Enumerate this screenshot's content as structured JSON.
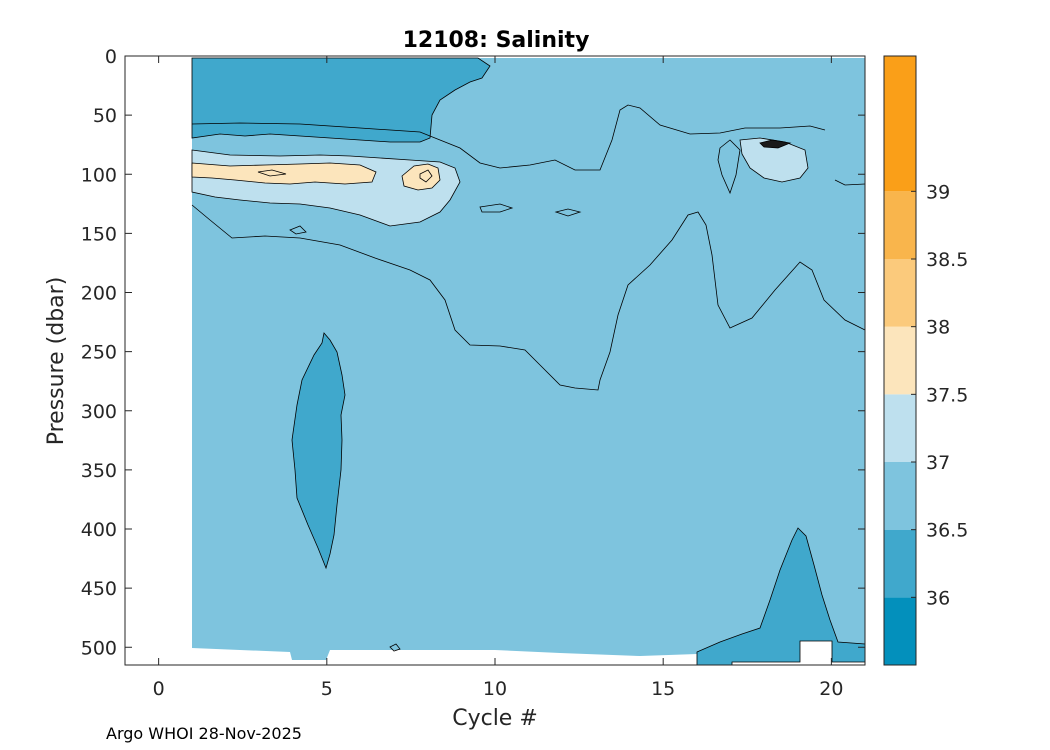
{
  "chart_data": {
    "type": "contour",
    "title": "12108:  Salinity",
    "xlabel": "Cycle #",
    "ylabel": "Pressure (dbar)",
    "xlim": [
      -1,
      21
    ],
    "ylim": [
      515,
      0
    ],
    "xticks": [
      0,
      5,
      10,
      15,
      20
    ],
    "yticks": [
      0,
      50,
      100,
      150,
      200,
      250,
      300,
      350,
      400,
      450,
      500
    ],
    "data_extent": {
      "x": [
        1,
        21
      ],
      "y": [
        0,
        510
      ]
    },
    "background_level": "36.5-37",
    "regions": [
      {
        "level": "36.5-37",
        "description": "background field over most of the section",
        "cycles": [
          1,
          21
        ],
        "pressure": [
          0,
          510
        ]
      },
      {
        "level": "36-36.5",
        "description": "fresher surface layer",
        "cycles": [
          1,
          9.9
        ],
        "pressure": [
          0,
          70
        ]
      },
      {
        "level": "37-37.5",
        "description": "salinity maximum layer",
        "cycles": [
          1,
          9
        ],
        "pressure": [
          80,
          140
        ]
      },
      {
        "level": "37.5-38",
        "description": "core of salinity maximum",
        "cycles": [
          1,
          6.5
        ],
        "pressure": [
          92,
          112
        ]
      },
      {
        "level": "37.5-38",
        "description": "core of salinity maximum",
        "cycles": [
          7.2,
          8.2
        ],
        "pressure": [
          88,
          110
        ]
      },
      {
        "level": "36-36.5",
        "description": "fresh lens at depth",
        "cycles": [
          3.9,
          5.5
        ],
        "pressure": [
          232,
          432
        ]
      },
      {
        "level": "36-36.5",
        "description": "fresh intrusion near bottom",
        "cycles": [
          16,
          21
        ],
        "pressure": [
          398,
          508
        ]
      },
      {
        "level": "37-37.5",
        "description": "salty patch",
        "cycles": [
          17.5,
          19.3
        ],
        "pressure": [
          70,
          105
        ]
      }
    ],
    "colorbar": {
      "ticks": [
        "36",
        "36.5",
        "37",
        "37.5",
        "38",
        "38.5",
        "39"
      ],
      "range": [
        35.5,
        40
      ],
      "levels": [
        {
          "min": 35.5,
          "max": 36.0,
          "color": "#0390bc"
        },
        {
          "min": 36.0,
          "max": 36.5,
          "color": "#40a8cc"
        },
        {
          "min": 36.5,
          "max": 37.0,
          "color": "#7ec4de"
        },
        {
          "min": 37.0,
          "max": 37.5,
          "color": "#bee0ee"
        },
        {
          "min": 37.5,
          "max": 38.0,
          "color": "#fce5bc"
        },
        {
          "min": 38.0,
          "max": 38.5,
          "color": "#fbca7c"
        },
        {
          "min": 38.5,
          "max": 39.0,
          "color": "#f9b54c"
        },
        {
          "min": 39.0,
          "max": 40.0,
          "color": "#fa9f18"
        }
      ]
    }
  },
  "footer": "Argo WHOI 28-Nov-2025"
}
